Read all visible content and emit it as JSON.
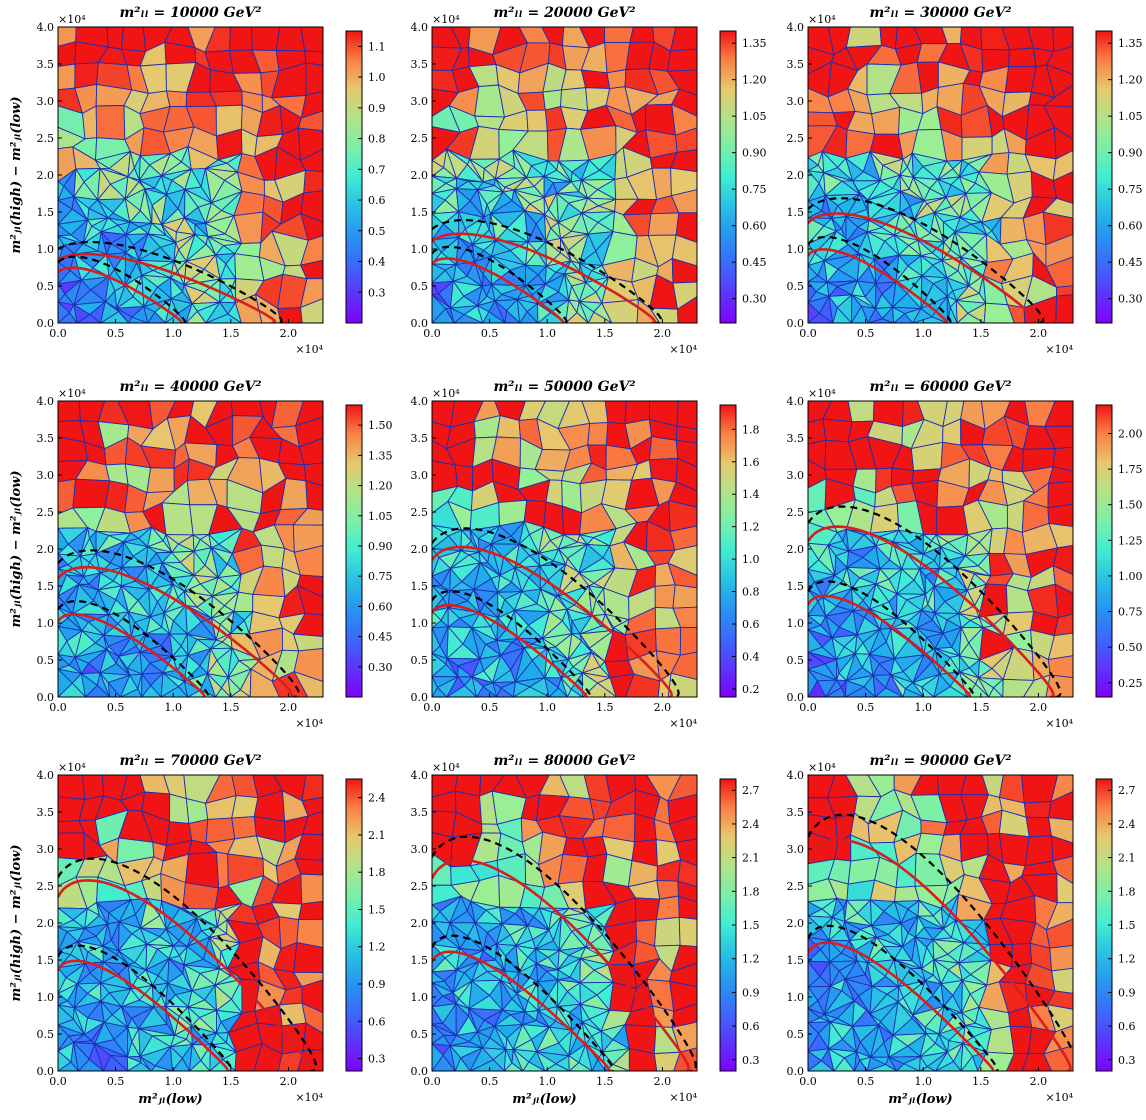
{
  "figure": {
    "ylabel": "m²ⱼₗ(high) − m²ⱼₗ(low)",
    "xlabel": "m²ⱼₗ(low)",
    "x_multiplier": "×10⁴",
    "y_multiplier": "×10⁴",
    "x_ticks": [
      "0.0",
      "0.5",
      "1.0",
      "1.5",
      "2.0"
    ],
    "y_ticks": [
      "0.0",
      "0.5",
      "1.0",
      "1.5",
      "2.0",
      "2.5",
      "3.0",
      "3.5",
      "4.0"
    ]
  },
  "chart_data": [
    {
      "type": "heatmap",
      "title": "m²ₗₗ = 10000 GeV²",
      "mll2": 10000,
      "xlim": [
        0,
        23000
      ],
      "ylim": [
        0,
        40000
      ],
      "xlabel": "",
      "ylabel": "m²ⱼₗ(high) − m²ⱼₗ(low)",
      "colorbar": {
        "min": 0.2,
        "max": 1.15,
        "ticks": [
          "0.3",
          "0.4",
          "0.5",
          "0.6",
          "0.7",
          "0.8",
          "0.9",
          "1.0",
          "1.1"
        ]
      }
    },
    {
      "type": "heatmap",
      "title": "m²ₗₗ = 20000 GeV²",
      "mll2": 20000,
      "xlim": [
        0,
        23000
      ],
      "ylim": [
        0,
        40000
      ],
      "xlabel": "",
      "ylabel": "",
      "colorbar": {
        "min": 0.2,
        "max": 1.4,
        "ticks": [
          "0.30",
          "0.45",
          "0.60",
          "0.75",
          "0.90",
          "1.05",
          "1.20",
          "1.35"
        ]
      }
    },
    {
      "type": "heatmap",
      "title": "m²ₗₗ = 30000 GeV²",
      "mll2": 30000,
      "xlim": [
        0,
        23000
      ],
      "ylim": [
        0,
        40000
      ],
      "xlabel": "",
      "ylabel": "",
      "colorbar": {
        "min": 0.2,
        "max": 1.4,
        "ticks": [
          "0.30",
          "0.45",
          "0.60",
          "0.75",
          "0.90",
          "1.05",
          "1.20",
          "1.35"
        ]
      }
    },
    {
      "type": "heatmap",
      "title": "m²ₗₗ = 40000 GeV²",
      "mll2": 40000,
      "xlim": [
        0,
        23000
      ],
      "ylim": [
        0,
        40000
      ],
      "xlabel": "",
      "ylabel": "m²ⱼₗ(high) − m²ⱼₗ(low)",
      "colorbar": {
        "min": 0.15,
        "max": 1.6,
        "ticks": [
          "0.30",
          "0.45",
          "0.60",
          "0.75",
          "0.90",
          "1.05",
          "1.20",
          "1.35",
          "1.50"
        ]
      }
    },
    {
      "type": "heatmap",
      "title": "m²ₗₗ = 50000 GeV²",
      "mll2": 50000,
      "xlim": [
        0,
        23000
      ],
      "ylim": [
        0,
        40000
      ],
      "xlabel": "",
      "ylabel": "",
      "colorbar": {
        "min": 0.15,
        "max": 1.95,
        "ticks": [
          "0.2",
          "0.4",
          "0.6",
          "0.8",
          "1.0",
          "1.2",
          "1.4",
          "1.6",
          "1.8"
        ]
      }
    },
    {
      "type": "heatmap",
      "title": "m²ₗₗ = 60000 GeV²",
      "mll2": 60000,
      "xlim": [
        0,
        23000
      ],
      "ylim": [
        0,
        40000
      ],
      "xlabel": "",
      "ylabel": "",
      "colorbar": {
        "min": 0.15,
        "max": 2.2,
        "ticks": [
          "0.25",
          "0.50",
          "0.75",
          "1.00",
          "1.25",
          "1.50",
          "1.75",
          "2.00"
        ]
      }
    },
    {
      "type": "heatmap",
      "title": "m²ₗₗ = 70000 GeV²",
      "mll2": 70000,
      "xlim": [
        0,
        23000
      ],
      "ylim": [
        0,
        40000
      ],
      "xlabel": "m²ⱼₗ(low)",
      "ylabel": "m²ⱼₗ(high) − m²ⱼₗ(low)",
      "colorbar": {
        "min": 0.2,
        "max": 2.55,
        "ticks": [
          "0.3",
          "0.6",
          "0.9",
          "1.2",
          "1.5",
          "1.8",
          "2.1",
          "2.4"
        ]
      }
    },
    {
      "type": "heatmap",
      "title": "m²ₗₗ = 80000 GeV²",
      "mll2": 80000,
      "xlim": [
        0,
        23000
      ],
      "ylim": [
        0,
        40000
      ],
      "xlabel": "m²ⱼₗ(low)",
      "ylabel": "",
      "colorbar": {
        "min": 0.2,
        "max": 2.8,
        "ticks": [
          "0.3",
          "0.6",
          "0.9",
          "1.2",
          "1.5",
          "1.8",
          "2.1",
          "2.4",
          "2.7"
        ]
      }
    },
    {
      "type": "heatmap",
      "title": "m²ₗₗ = 90000 GeV²",
      "mll2": 90000,
      "xlim": [
        0,
        23000
      ],
      "ylim": [
        0,
        40000
      ],
      "xlabel": "m²ⱼₗ(low)",
      "ylabel": "",
      "colorbar": {
        "min": 0.2,
        "max": 2.8,
        "ticks": [
          "0.3",
          "0.6",
          "0.9",
          "1.2",
          "1.5",
          "1.8",
          "2.1",
          "2.4",
          "2.7"
        ]
      }
    }
  ]
}
